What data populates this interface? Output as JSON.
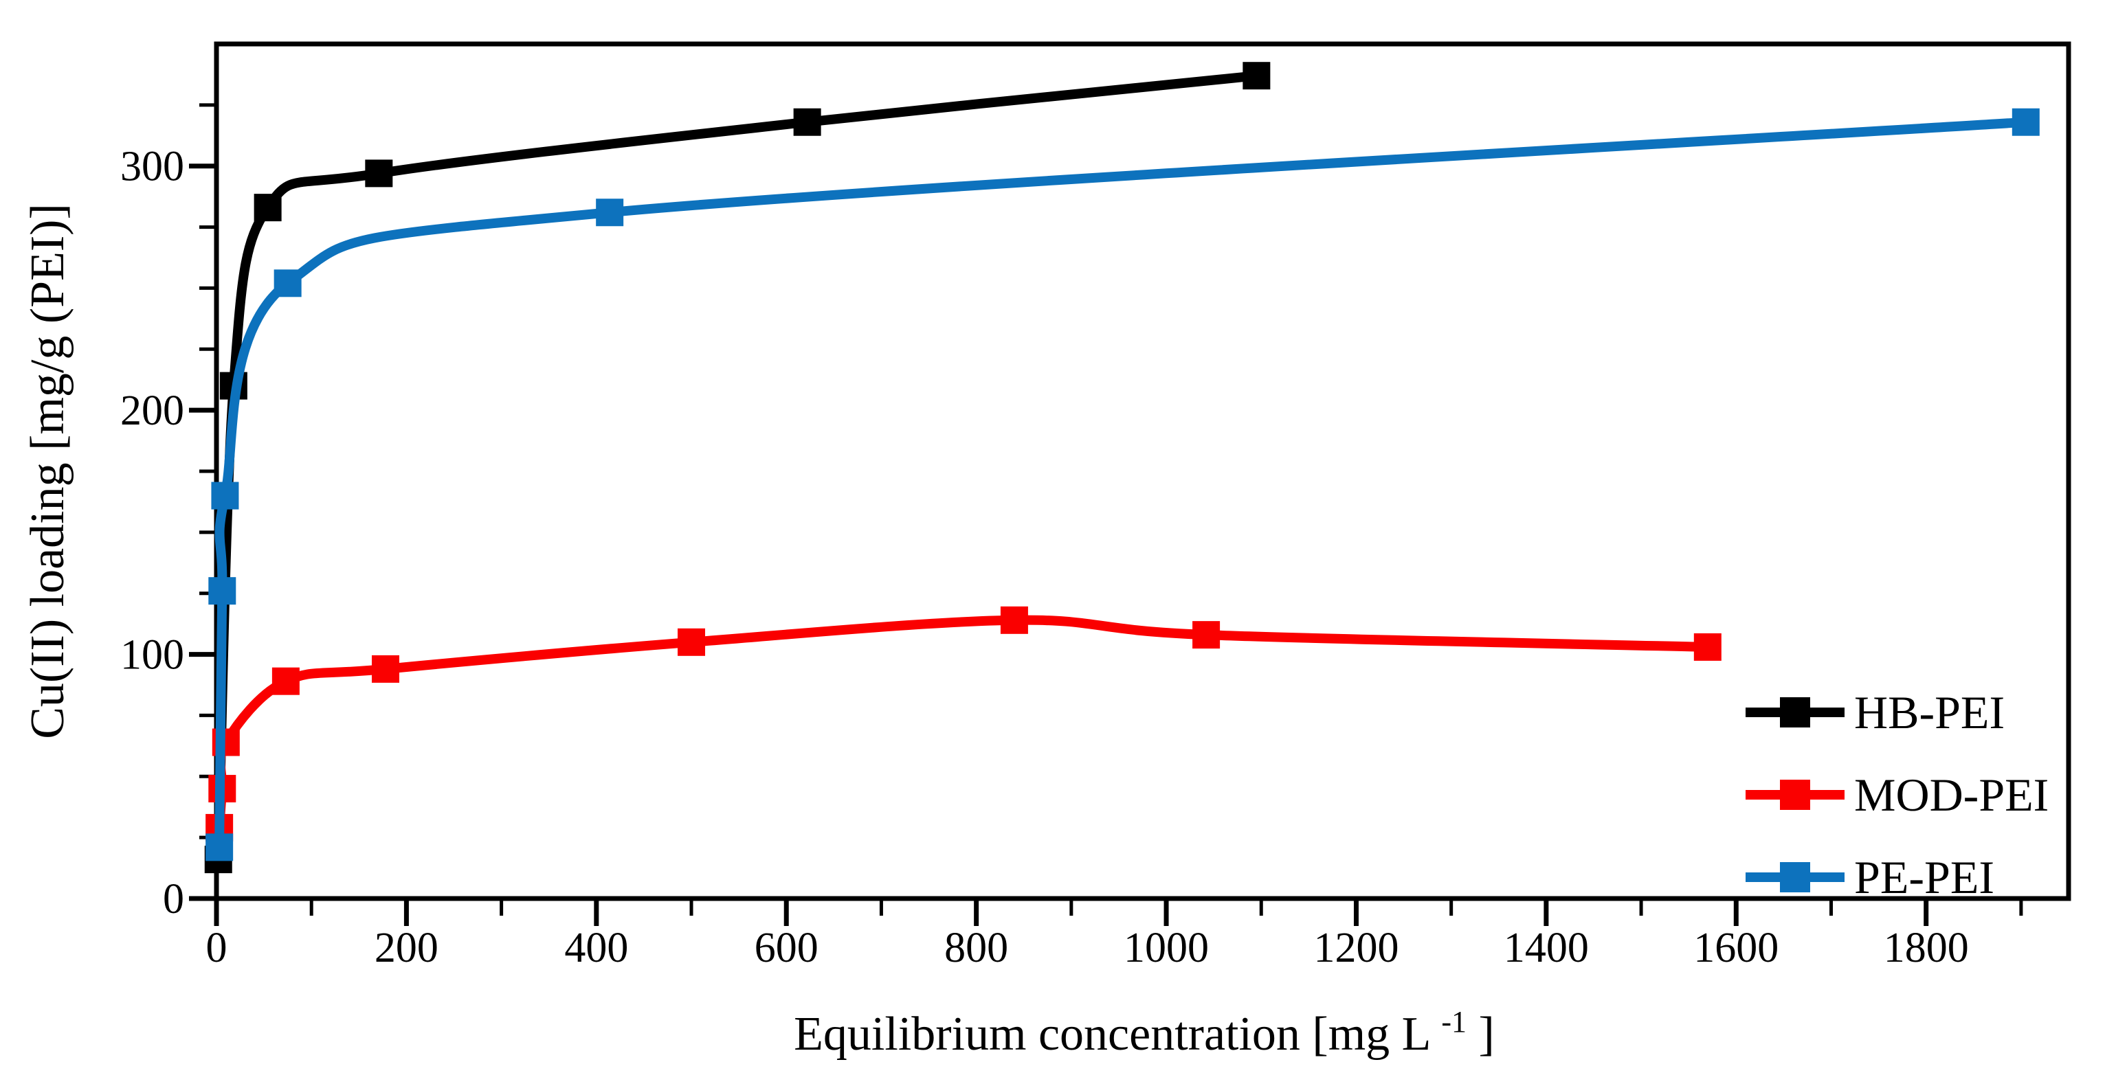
{
  "figure": {
    "background": "#ffffff",
    "frame_color": "#000000"
  },
  "chart_data": {
    "type": "line",
    "title": "",
    "xlabel": "Equilibrium concentration [mg L⁻¹]",
    "xlabel_parts": {
      "main": "Equilibrium concentration [mg L",
      "sup": "-1",
      "close": "]"
    },
    "ylabel": "Cu(II) loading [mg/g (PEI)]",
    "xlim": [
      0,
      1950
    ],
    "ylim": [
      0,
      350
    ],
    "grid": "off",
    "x_major_ticks": [
      0,
      200,
      400,
      600,
      800,
      1000,
      1200,
      1400,
      1600,
      1800
    ],
    "x_major_tick_labels": [
      "0",
      "200",
      "400",
      "600",
      "800",
      "1000",
      "1200",
      "1400",
      "1600",
      "1800"
    ],
    "x_minor_ticks": [
      100,
      300,
      500,
      700,
      900,
      1100,
      1300,
      1500,
      1700,
      1900
    ],
    "y_major_ticks": [
      0,
      100,
      200,
      300
    ],
    "y_major_tick_labels": [
      "0",
      "100",
      "200",
      "300"
    ],
    "y_minor_ticks": [
      25,
      50,
      75,
      125,
      150,
      175,
      225,
      250,
      275,
      325
    ],
    "legend_position": "inside lower right",
    "series": [
      {
        "name": "HB-PEI",
        "color": "#000000",
        "marker": "square",
        "points": [
          [
            2,
            16
          ],
          [
            18,
            210
          ],
          [
            54,
            283
          ],
          [
            171,
            297
          ],
          [
            622,
            318
          ],
          [
            1095,
            337
          ]
        ]
      },
      {
        "name": "MOD-PEI",
        "color": "#fa0000",
        "marker": "square",
        "points": [
          [
            3,
            29
          ],
          [
            6,
            45
          ],
          [
            10,
            64
          ],
          [
            73,
            89
          ],
          [
            178,
            94
          ],
          [
            500,
            105
          ],
          [
            840,
            114
          ],
          [
            1042,
            108
          ],
          [
            1570,
            103
          ]
        ]
      },
      {
        "name": "PE-PEI",
        "color": "#0d72bd",
        "marker": "square",
        "points": [
          [
            3,
            21
          ],
          [
            6,
            126
          ],
          [
            9,
            165
          ],
          [
            75,
            252
          ],
          [
            414,
            281
          ],
          [
            1905,
            318
          ]
        ]
      }
    ]
  }
}
